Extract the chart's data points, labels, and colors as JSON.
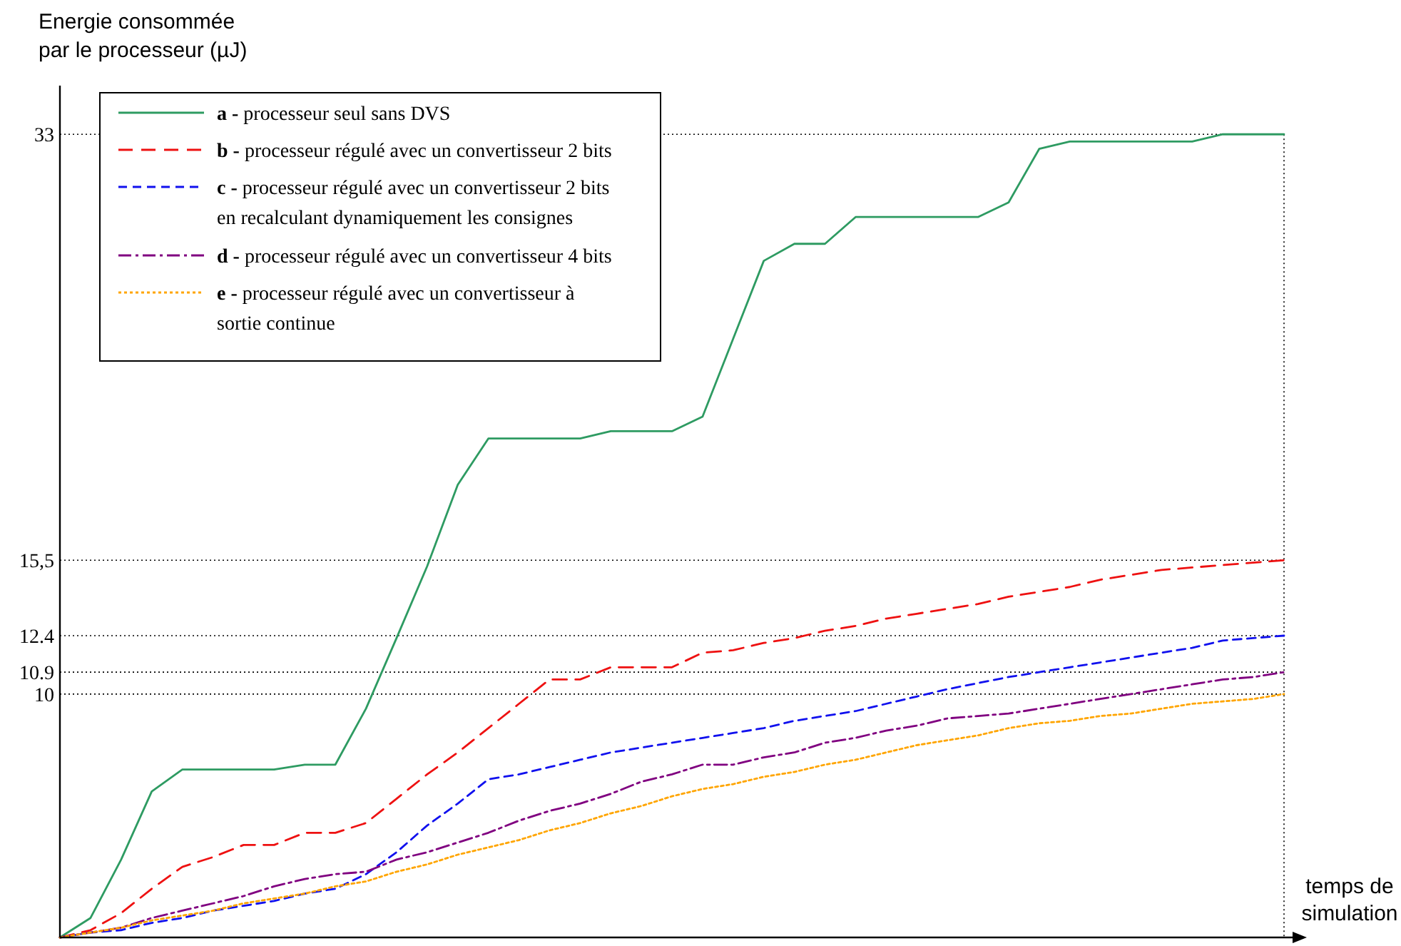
{
  "chart_data": {
    "type": "line",
    "xlabel": "temps de simulation",
    "ylabel": "Energie consommée par le processeur (µJ)",
    "categories": [
      null,
      null,
      null,
      null,
      null,
      null,
      null,
      null,
      null,
      null,
      null,
      null,
      null,
      null,
      null,
      null,
      null,
      null,
      null,
      null,
      null,
      null,
      null,
      null,
      null,
      null,
      null,
      null,
      null,
      null,
      null,
      null,
      null,
      null,
      null,
      null,
      null,
      null,
      null,
      null,
      null
    ],
    "ylim": [
      0,
      35
    ],
    "yticks": [
      10,
      10.9,
      12.4,
      {
        "value": 15.5,
        "label": "15,5"
      },
      33
    ],
    "grid": "y",
    "legend": "top left",
    "tick_labels": "y",
    "series": [
      {
        "name": "a - processeur seul sans DVS",
        "color": "#2e9b62",
        "line_style": "solid",
        "values": [
          0,
          0.8,
          3.2,
          6.0,
          6.9,
          6.9,
          6.9,
          6.9,
          7.1,
          7.1,
          9.4,
          12.3,
          15.25,
          18.6,
          20.5,
          20.5,
          20.5,
          20.5,
          20.8,
          20.8,
          20.8,
          21.4,
          24.6,
          27.8,
          28.5,
          28.5,
          29.6,
          29.6,
          29.6,
          29.6,
          29.6,
          30.2,
          32.4,
          32.7,
          32.7,
          32.7,
          32.7,
          32.7,
          33,
          33,
          33
        ]
      },
      {
        "name": "b - processeur régulé avec un convertisseur 2 bits",
        "color": "#ee1111",
        "line_style": "dashed",
        "values": [
          0,
          0.3,
          1.0,
          2.0,
          2.9,
          3.3,
          3.8,
          3.8,
          4.3,
          4.3,
          4.7,
          5.7,
          6.7,
          7.6,
          8.6,
          9.6,
          10.6,
          10.6,
          11.1,
          11.1,
          11.1,
          11.7,
          11.8,
          12.1,
          12.3,
          12.6,
          12.8,
          13.1,
          13.3,
          13.5,
          13.7,
          14.0,
          14.2,
          14.4,
          14.7,
          14.9,
          15.1,
          15.2,
          15.3,
          15.4,
          15.5
        ]
      },
      {
        "name": "c - processeur régulé avec un convertisseur 2 bits en recalculant  dynamiquement les consignes",
        "color": "#1111ee",
        "line_style": "dashed",
        "values": [
          0,
          0.2,
          0.3,
          0.6,
          0.8,
          1.1,
          1.3,
          1.5,
          1.8,
          2.0,
          2.6,
          3.5,
          4.6,
          5.5,
          6.5,
          6.7,
          7.0,
          7.3,
          7.6,
          7.8,
          8.0,
          8.2,
          8.4,
          8.6,
          8.9,
          9.1,
          9.3,
          9.6,
          9.9,
          10.2,
          10.45,
          10.7,
          10.9,
          11.1,
          11.3,
          11.5,
          11.7,
          11.9,
          12.2,
          12.3,
          12.4
        ]
      },
      {
        "name": "d - processeur régulé avec un convertisseur 4 bits",
        "color": "#800080",
        "line_style": "dashed",
        "values": [
          0,
          0.2,
          0.4,
          0.8,
          1.1,
          1.4,
          1.7,
          2.1,
          2.4,
          2.6,
          2.7,
          3.2,
          3.5,
          3.9,
          4.3,
          4.8,
          5.2,
          5.5,
          5.9,
          6.4,
          6.7,
          7.1,
          7.1,
          7.4,
          7.6,
          8.0,
          8.2,
          8.5,
          8.7,
          9.0,
          9.1,
          9.2,
          9.4,
          9.6,
          9.8,
          10.0,
          10.2,
          10.4,
          10.6,
          10.7,
          10.9
        ]
      },
      {
        "name": "e - processeur régulé avec un convertisseur à sortie continue",
        "color": "#ffa500",
        "line_style": "dotted",
        "values": [
          0,
          0.2,
          0.4,
          0.7,
          0.9,
          1.1,
          1.4,
          1.6,
          1.8,
          2.1,
          2.3,
          2.7,
          3.0,
          3.4,
          3.7,
          4.0,
          4.4,
          4.7,
          5.1,
          5.4,
          5.8,
          6.1,
          6.3,
          6.6,
          6.8,
          7.1,
          7.3,
          7.6,
          7.9,
          8.1,
          8.3,
          8.6,
          8.8,
          8.9,
          9.1,
          9.2,
          9.4,
          9.6,
          9.7,
          9.8,
          10
        ]
      }
    ]
  }
}
